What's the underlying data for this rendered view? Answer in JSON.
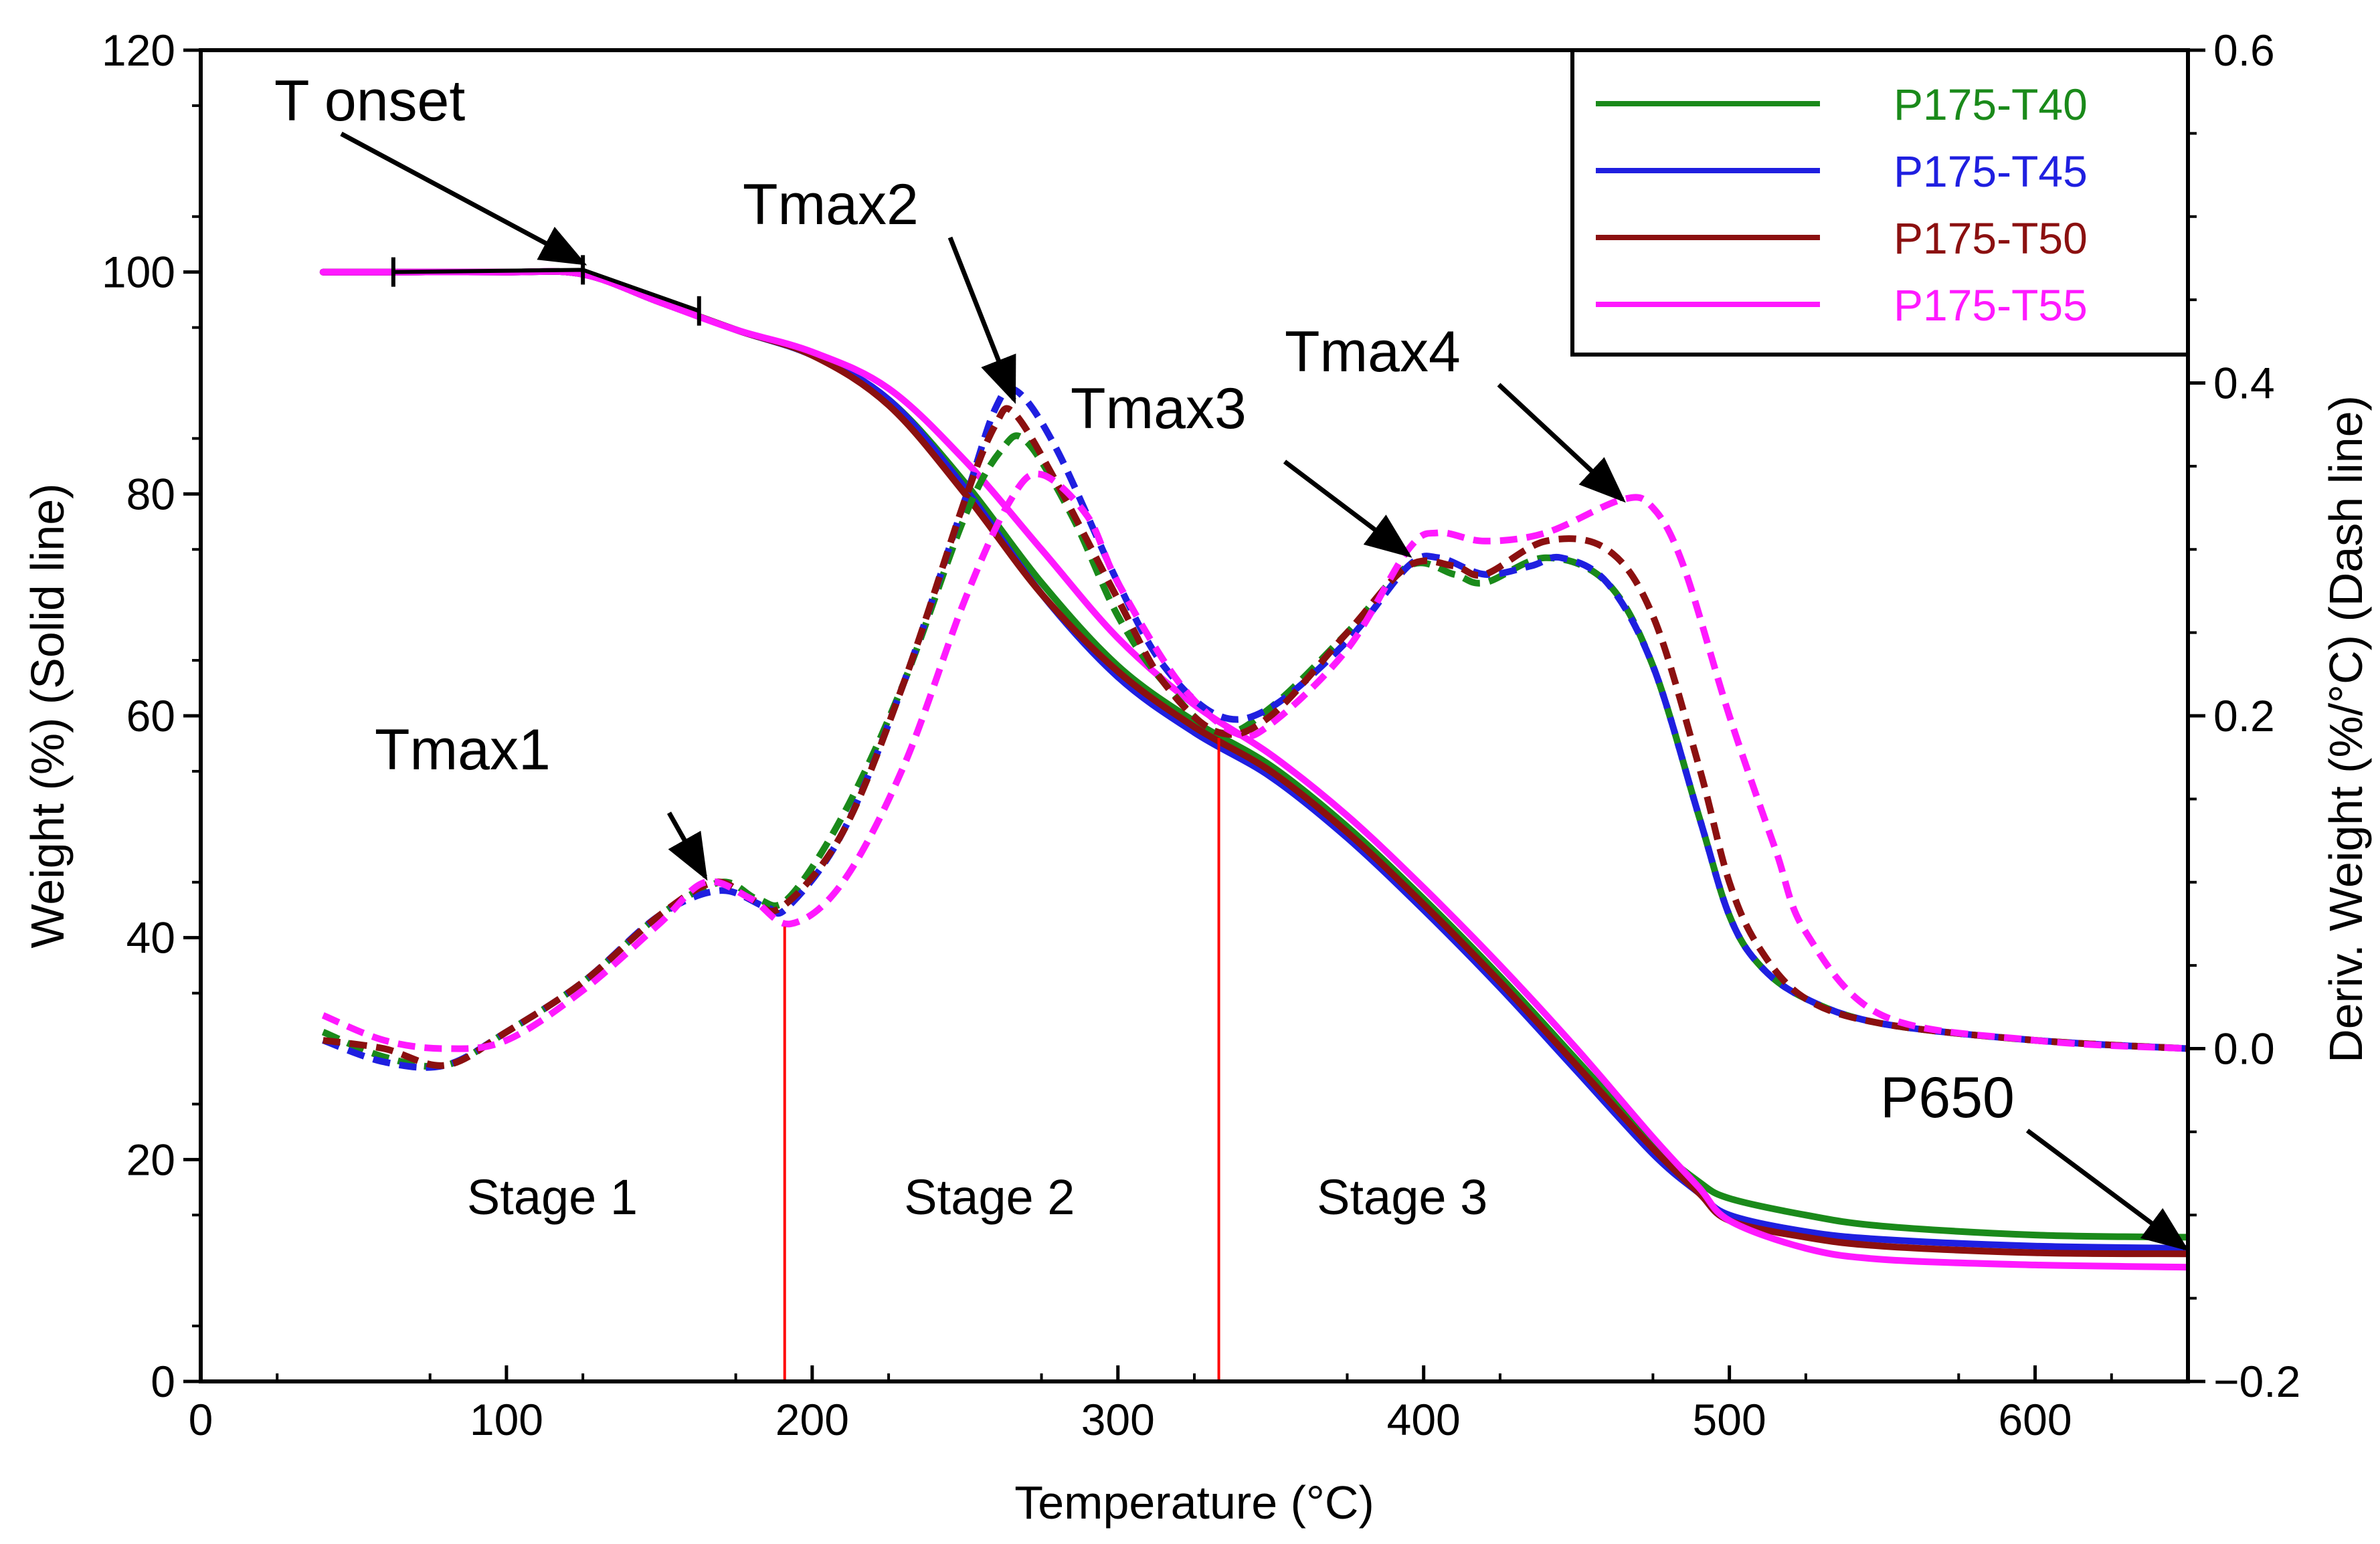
{
  "chart_data": {
    "type": "line",
    "title": "",
    "xlabel": "Temperature (°C)",
    "ylabel_left": "Weight (%) (Solid line)",
    "ylabel_right": "Deriv. Weight (%/°C) (Dash line)",
    "xlim": [
      0,
      650
    ],
    "ylim_left": [
      0,
      120
    ],
    "ylim_right": [
      -0.2,
      0.6
    ],
    "x_ticks": [
      0,
      100,
      200,
      300,
      400,
      500,
      600
    ],
    "x_tick_labels": [
      "0",
      "100",
      "200",
      "300",
      "400",
      "500",
      "600"
    ],
    "y_left_ticks": [
      0,
      20,
      40,
      60,
      80,
      100,
      120
    ],
    "y_left_tick_labels": [
      "0",
      "20",
      "40",
      "60",
      "80",
      "100",
      "120"
    ],
    "y_right_ticks": [
      -0.2,
      0.0,
      0.2,
      0.4,
      0.6
    ],
    "y_right_tick_labels": [
      "−0.2",
      "0.0",
      "0.2",
      "0.4",
      "0.6"
    ],
    "legend": {
      "position": "top-right",
      "entries": [
        {
          "name": "P175-T40",
          "color": "#1a8a1a"
        },
        {
          "name": "P175-T45",
          "color": "#1f1fe0"
        },
        {
          "name": "P175-T50",
          "color": "#8b1010"
        },
        {
          "name": "P175-T55",
          "color": "#ff19ff"
        }
      ]
    },
    "annotations": [
      {
        "text": "T onset",
        "x": 125,
        "y_left": 100.2
      },
      {
        "text": "Tmax1",
        "x": 165,
        "y_left": 45.5
      },
      {
        "text": "Tmax2",
        "x": 266,
        "y_left": 88.5
      },
      {
        "text": "Tmax3",
        "x": 395,
        "y_left": 74.5
      },
      {
        "text": "Tmax4",
        "x": 465,
        "y_left": 79.5
      },
      {
        "text": "P650",
        "x": 650,
        "y_left": 12
      }
    ],
    "onset_markers": {
      "x": [
        63,
        125,
        163
      ],
      "y_left": [
        100,
        100.2,
        96.5
      ]
    },
    "stages": [
      {
        "label": "Stage 1",
        "x": 115
      },
      {
        "label": "Stage 2",
        "x": 258
      },
      {
        "label": "Stage 3",
        "x": 393
      }
    ],
    "stage_boundaries": [
      {
        "x": 191,
        "y_top": 41
      },
      {
        "x": 333,
        "y_top": 58
      }
    ],
    "weight_series": [
      {
        "name": "P175-T40",
        "color": "#1a8a1a",
        "x": [
          40,
          60,
          100,
          125,
          150,
          175,
          200,
          225,
          250,
          275,
          300,
          325,
          350,
          375,
          400,
          425,
          450,
          475,
          490,
          500,
          525,
          550,
          600,
          650
        ],
        "y": [
          100,
          100,
          100,
          99.8,
          97.3,
          94.8,
          92.5,
          88.5,
          81,
          72,
          64.5,
          59.5,
          55.5,
          50,
          43.5,
          36.5,
          29,
          21.5,
          18,
          16.5,
          15,
          14,
          13.2,
          13
        ]
      },
      {
        "name": "P175-T45",
        "color": "#1f1fe0",
        "x": [
          40,
          60,
          100,
          125,
          150,
          175,
          200,
          225,
          250,
          275,
          300,
          325,
          350,
          375,
          400,
          425,
          450,
          475,
          490,
          500,
          525,
          550,
          600,
          650
        ],
        "y": [
          100,
          100,
          100,
          99.8,
          97.3,
          94.8,
          92.5,
          88.5,
          80.5,
          71,
          63.5,
          58.5,
          54.5,
          49,
          42.5,
          35.5,
          28,
          20.5,
          17,
          15,
          13.5,
          12.8,
          12.2,
          12
        ]
      },
      {
        "name": "P175-T50",
        "color": "#8b1010",
        "x": [
          40,
          60,
          100,
          125,
          150,
          175,
          200,
          225,
          250,
          275,
          300,
          325,
          350,
          375,
          400,
          425,
          450,
          475,
          490,
          500,
          525,
          550,
          600,
          650
        ],
        "y": [
          100,
          100,
          100,
          99.8,
          97.3,
          94.8,
          92.5,
          88,
          80,
          71,
          64,
          59,
          55,
          49.5,
          43,
          36,
          28.5,
          21,
          17,
          14.5,
          13,
          12.2,
          11.6,
          11.5
        ]
      },
      {
        "name": "P175-T55",
        "color": "#ff19ff",
        "x": [
          40,
          60,
          100,
          125,
          150,
          175,
          200,
          225,
          250,
          275,
          300,
          325,
          350,
          375,
          400,
          425,
          450,
          475,
          490,
          500,
          525,
          550,
          600,
          650
        ],
        "y": [
          100,
          100,
          100,
          99.8,
          97.3,
          94.8,
          92.8,
          89.5,
          83,
          75,
          67,
          61,
          56.5,
          51,
          44.5,
          37.5,
          30,
          22,
          17.5,
          14.5,
          12,
          11,
          10.5,
          10.3
        ]
      }
    ],
    "derivative_series": [
      {
        "name": "P175-T40",
        "color": "#1a8a1a",
        "x": [
          40,
          60,
          80,
          100,
          125,
          150,
          170,
          182,
          192,
          210,
          230,
          250,
          262,
          270,
          285,
          300,
          315,
          333,
          350,
          375,
          395,
          410,
          420,
          440,
          460,
          475,
          490,
          500,
          510,
          525,
          550,
          600,
          650
        ],
        "y": [
          0.01,
          -0.005,
          -0.01,
          0.01,
          0.04,
          0.08,
          0.1,
          0.09,
          0.09,
          0.14,
          0.22,
          0.32,
          0.36,
          0.365,
          0.32,
          0.26,
          0.22,
          0.19,
          0.205,
          0.25,
          0.29,
          0.285,
          0.28,
          0.295,
          0.28,
          0.23,
          0.14,
          0.08,
          0.05,
          0.03,
          0.015,
          0.005,
          0.0
        ]
      },
      {
        "name": "P175-T45",
        "color": "#1f1fe0",
        "x": [
          40,
          60,
          80,
          100,
          125,
          150,
          170,
          185,
          192,
          210,
          230,
          250,
          260,
          267,
          280,
          300,
          315,
          333,
          350,
          375,
          395,
          405,
          420,
          435,
          445,
          460,
          475,
          490,
          500,
          510,
          525,
          550,
          600,
          650
        ],
        "y": [
          0.005,
          -0.008,
          -0.01,
          0.01,
          0.04,
          0.08,
          0.095,
          0.085,
          0.085,
          0.13,
          0.22,
          0.33,
          0.385,
          0.395,
          0.36,
          0.28,
          0.23,
          0.2,
          0.205,
          0.245,
          0.29,
          0.295,
          0.285,
          0.29,
          0.295,
          0.28,
          0.23,
          0.14,
          0.08,
          0.05,
          0.03,
          0.015,
          0.005,
          0.0
        ]
      },
      {
        "name": "P175-T50",
        "color": "#8b1010",
        "x": [
          40,
          60,
          80,
          100,
          125,
          150,
          168,
          180,
          190,
          210,
          230,
          250,
          260,
          266,
          280,
          300,
          315,
          333,
          350,
          375,
          395,
          410,
          420,
          440,
          460,
          475,
          490,
          500,
          510,
          525,
          550,
          600,
          650
        ],
        "y": [
          0.005,
          0.0,
          -0.01,
          0.01,
          0.04,
          0.08,
          0.1,
          0.09,
          0.085,
          0.13,
          0.22,
          0.33,
          0.375,
          0.382,
          0.34,
          0.27,
          0.22,
          0.19,
          0.2,
          0.25,
          0.29,
          0.29,
          0.285,
          0.305,
          0.3,
          0.26,
          0.17,
          0.1,
          0.06,
          0.03,
          0.015,
          0.005,
          0.0
        ]
      },
      {
        "name": "P175-T55",
        "color": "#ff19ff",
        "x": [
          40,
          60,
          80,
          100,
          125,
          150,
          165,
          180,
          193,
          210,
          230,
          250,
          265,
          275,
          290,
          300,
          320,
          338,
          350,
          375,
          395,
          405,
          420,
          440,
          465,
          475,
          485,
          500,
          515,
          525,
          550,
          600,
          650
        ],
        "y": [
          0.02,
          0.005,
          0.0,
          0.005,
          0.035,
          0.075,
          0.1,
          0.09,
          0.075,
          0.1,
          0.17,
          0.27,
          0.33,
          0.345,
          0.32,
          0.28,
          0.22,
          0.19,
          0.195,
          0.24,
          0.3,
          0.31,
          0.305,
          0.31,
          0.33,
          0.325,
          0.29,
          0.2,
          0.12,
          0.07,
          0.02,
          0.005,
          0.0
        ]
      }
    ]
  }
}
